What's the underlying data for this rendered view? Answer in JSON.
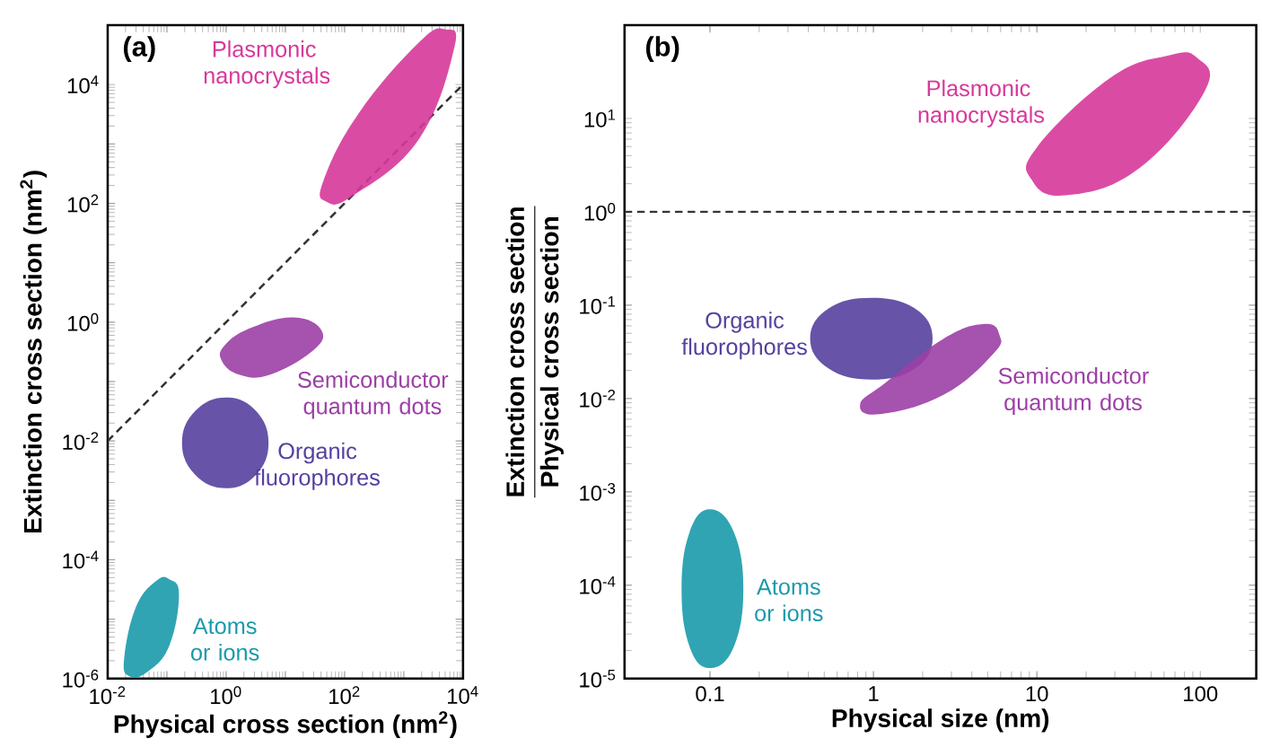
{
  "chart_data": [
    {
      "type": "area",
      "xlabel": "Physical cross section (nm$^{2}$)",
      "ylabel": "Extinction cross section (nm$^{2}$)",
      "annotations": [
        "(a)"
      ],
      "log": "xy",
      "grid": false,
      "xlim": [
        0.01,
        10000
      ],
      "ylim": [
        1e-06,
        100000
      ],
      "xticks": [
        {
          "value": 0.01,
          "label": "10$^{-2}$"
        },
        {
          "value": 0.1,
          "label": null
        },
        {
          "value": 1,
          "label": "10$^{0}$"
        },
        {
          "value": 10,
          "label": null
        },
        {
          "value": 100,
          "label": "10$^{2}$"
        },
        {
          "value": 1000,
          "label": null
        },
        {
          "value": 10000,
          "label": "10$^{4}$"
        }
      ],
      "yticks": [
        {
          "value": 1e-06,
          "label": "10$^{-6}$"
        },
        {
          "value": 1e-05,
          "label": null
        },
        {
          "value": 0.0001,
          "label": "10$^{-4}$"
        },
        {
          "value": 0.001,
          "label": null
        },
        {
          "value": 0.01,
          "label": "10$^{-2}$"
        },
        {
          "value": 0.1,
          "label": null
        },
        {
          "value": 1,
          "label": "10$^{0}$"
        },
        {
          "value": 10,
          "label": null
        },
        {
          "value": 100,
          "label": "10$^{2}$"
        },
        {
          "value": 1000,
          "label": null
        },
        {
          "value": 10000,
          "label": "10$^{4}$"
        }
      ],
      "series": [
        {
          "type": "line",
          "color": "#333333",
          "line_style": "dashed",
          "x": [
            0.01,
            10000
          ],
          "values": [
            0.01,
            10000
          ]
        },
        {
          "name": "Plasmonic nanocrystals",
          "color": "#d6399a",
          "x": [
            5000,
            7100,
            1800,
            140,
            49,
            44,
            170,
            1800
          ],
          "values": [
            85000,
            41000,
            1200,
            135,
            107,
            240,
            3200,
            51000
          ]
        },
        {
          "name": "Semiconductor quantum dots",
          "color": "#9c3fa6",
          "x": [
            0.85,
            1.7,
            5.4,
            28,
            41,
            14,
            2.7,
            0.95
          ],
          "values": [
            0.22,
            0.13,
            0.13,
            0.32,
            0.72,
            1.2,
            0.81,
            0.41
          ]
        },
        {
          "name": "Organic fluorophores",
          "color": "#56409f",
          "x": [
            5.2,
            3.2,
            1.0,
            0.3,
            0.18,
            0.3,
            1.0,
            3.2
          ],
          "values": [
            0.0093,
            0.032,
            0.054,
            0.032,
            0.0093,
            0.0027,
            0.0016,
            0.0027
          ]
        },
        {
          "name": "Atoms or ions",
          "color": "#1a9aab",
          "x": [
            0.11,
            0.16,
            0.11,
            0.047,
            0.023,
            0.019,
            0.03,
            0.066
          ],
          "values": [
            4.7e-05,
            2.6e-05,
            3.6e-06,
            1.3e-06,
            1.1e-06,
            2.2e-06,
            1.6e-05,
            4.4e-05
          ]
        }
      ]
    },
    {
      "type": "area",
      "xlabel": "Physical size (nm)",
      "ylabel": "\\frac{\\textbf{Extinction cross section}}{\\textbf{Physical cross section}}",
      "annotations": [
        "(b)"
      ],
      "log": "xy",
      "grid": false,
      "xlim": [
        0.03,
        220
      ],
      "ylim": [
        1e-05,
        100
      ],
      "xticks": [
        0.1,
        1,
        10,
        100
      ],
      "yticks": [
        {
          "value": 1e-05,
          "label": "10$^{-5}$"
        },
        {
          "value": 0.0001,
          "label": "10$^{-4}$"
        },
        {
          "value": 0.001,
          "label": "10$^{-3}$"
        },
        {
          "value": 0.01,
          "label": "10$^{-2}$"
        },
        {
          "value": 0.1,
          "label": "10$^{-1}$"
        },
        {
          "value": 1,
          "label": "10$^{0}$"
        },
        {
          "value": 10,
          "label": "10$^{1}$"
        }
      ],
      "ref_lines": [
        {
          "axis": "y",
          "value": 1,
          "color": "#333333",
          "line_style": "dashed"
        }
      ],
      "series": [
        {
          "name": "Plasmonic nanocrystals",
          "color": "#d6399a",
          "x": [
            95,
            107,
            42,
            15,
            9.3,
            10,
            28,
            63
          ],
          "values": [
            45,
            20,
            2.9,
            1.5,
            2.2,
            4.9,
            27,
            47
          ]
        },
        {
          "name": "Organic fluorophores",
          "color": "#56409f",
          "x": [
            2.3,
            1.8,
            0.97,
            0.53,
            0.41,
            0.53,
            0.97,
            1.8
          ],
          "values": [
            0.044,
            0.092,
            0.12,
            0.092,
            0.044,
            0.021,
            0.016,
            0.021
          ]
        },
        {
          "name": "Semiconductor quantum dots",
          "color": "#9c3fa6",
          "x": [
            5.9,
            4.8,
            2.7,
            1.2,
            0.83,
            1.1,
            2.7,
            5.4
          ],
          "values": [
            0.048,
            0.063,
            0.044,
            0.015,
            0.0087,
            0.0068,
            0.011,
            0.03
          ]
        },
        {
          "name": "Atoms or ions",
          "color": "#1a9aab",
          "x": [
            0.16,
            0.14,
            0.1,
            0.075,
            0.067,
            0.075,
            0.1,
            0.14
          ],
          "values": [
            9.1e-05,
            0.00037,
            0.00065,
            0.00037,
            9.1e-05,
            2.2e-05,
            1.3e-05,
            2.2e-05
          ]
        }
      ]
    }
  ]
}
